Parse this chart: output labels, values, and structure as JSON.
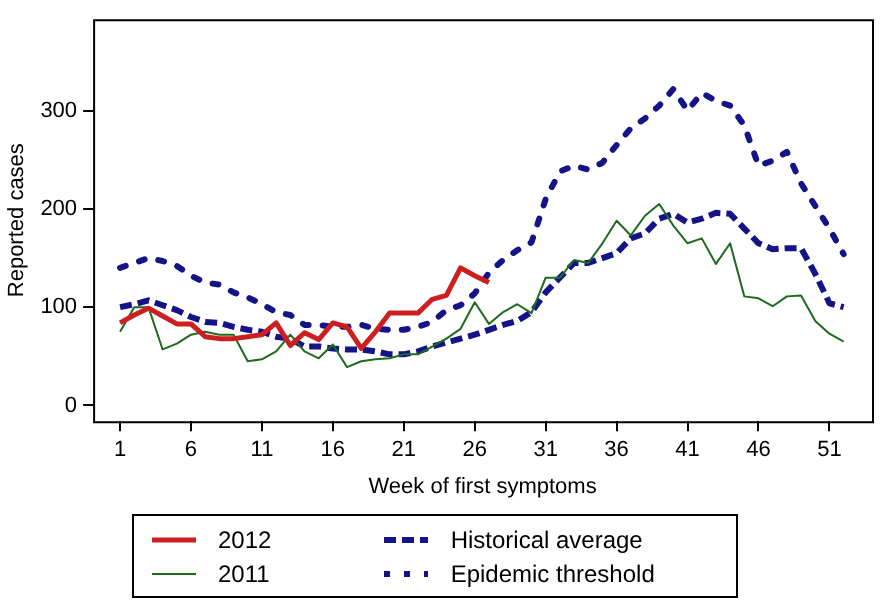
{
  "chart_data": {
    "type": "line",
    "xlabel": "Week of first symptoms",
    "ylabel": "Reported cases",
    "x": [
      1,
      2,
      3,
      4,
      5,
      6,
      7,
      8,
      9,
      10,
      11,
      12,
      13,
      14,
      15,
      16,
      17,
      18,
      19,
      20,
      21,
      22,
      23,
      24,
      25,
      26,
      27,
      28,
      29,
      30,
      31,
      32,
      33,
      34,
      35,
      36,
      37,
      38,
      39,
      40,
      41,
      42,
      43,
      44,
      45,
      46,
      47,
      48,
      49,
      50,
      51,
      52
    ],
    "xlim": [
      -0.9,
      54
    ],
    "xticks": [
      1,
      6,
      11,
      16,
      21,
      26,
      31,
      36,
      41,
      46,
      51
    ],
    "ylim": [
      -16,
      393
    ],
    "yticks": [
      0,
      100,
      200,
      300
    ],
    "grid": false,
    "legend": "bottom",
    "marker": "none",
    "series": [
      {
        "name": "2012",
        "color": "#cc2020",
        "line_style": "solid",
        "values": [
          84,
          92,
          99,
          91,
          83,
          83,
          70,
          68,
          68,
          70,
          72,
          84,
          61,
          74,
          67,
          84,
          80,
          58,
          75,
          94,
          94,
          94,
          108,
          112,
          140,
          132,
          125,
          null,
          null,
          null,
          null,
          null,
          null,
          null,
          null,
          null,
          null,
          null,
          null,
          null,
          null,
          null,
          null,
          null,
          null,
          null,
          null,
          null,
          null,
          null,
          null,
          null
        ]
      },
      {
        "name": "2011",
        "color": "#1e6b1e",
        "line_style": "solid",
        "values": [
          75,
          100,
          100,
          57,
          63,
          72,
          75,
          72,
          72,
          45,
          47,
          55,
          72,
          55,
          48,
          62,
          39,
          45,
          47,
          48,
          52,
          52,
          60,
          68,
          78,
          105,
          83,
          95,
          103,
          94,
          130,
          130,
          148,
          145,
          165,
          188,
          173,
          193,
          205,
          183,
          165,
          170,
          144,
          165,
          111,
          109,
          101,
          111,
          112,
          86,
          73,
          65
        ]
      },
      {
        "name": "Historical average",
        "color": "#141488",
        "line_style": "dashed",
        "values": [
          100,
          103,
          107,
          102,
          97,
          90,
          85,
          84,
          80,
          77,
          75,
          70,
          68,
          60,
          60,
          58,
          57,
          57,
          55,
          52,
          52,
          55,
          60,
          64,
          68,
          72,
          77,
          82,
          86,
          95,
          115,
          130,
          145,
          145,
          150,
          155,
          170,
          175,
          190,
          195,
          186,
          190,
          196,
          195,
          180,
          165,
          159,
          160,
          160,
          134,
          104,
          100
        ]
      },
      {
        "name": "Epidemic threshold",
        "color": "#141488",
        "line_style": "dotted",
        "values": [
          140,
          145,
          150,
          147,
          142,
          132,
          125,
          123,
          115,
          110,
          103,
          95,
          92,
          82,
          82,
          80,
          80,
          82,
          78,
          77,
          77,
          80,
          85,
          97,
          102,
          114,
          135,
          148,
          158,
          166,
          210,
          238,
          244,
          240,
          247,
          265,
          282,
          292,
          305,
          322,
          300,
          318,
          310,
          305,
          285,
          244,
          249,
          258,
          226,
          203,
          180,
          154
        ]
      }
    ]
  }
}
